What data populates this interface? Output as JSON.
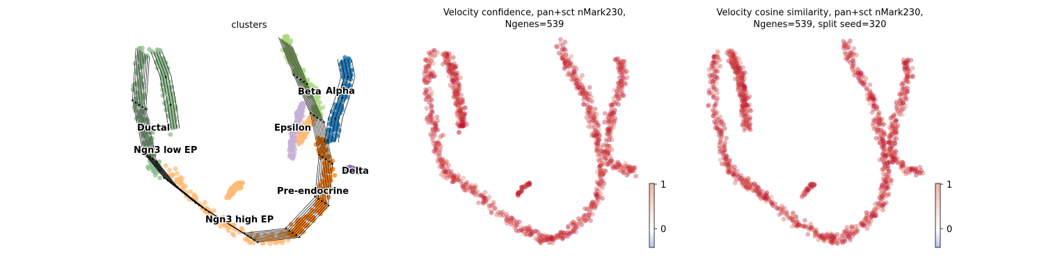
{
  "chart_data": [
    {
      "type": "scatter",
      "title": "clusters",
      "clusters": [
        {
          "name": "Ductal",
          "color": "#8fbc8f"
        },
        {
          "name": "Ngn3 low EP",
          "color": "#8fbc8f"
        },
        {
          "name": "Ngn3 high EP",
          "color": "#ffbb78"
        },
        {
          "name": "Pre-endocrine",
          "color": "#ff7f0e"
        },
        {
          "name": "Beta",
          "color": "#aad880"
        },
        {
          "name": "Alpha",
          "color": "#1f77b4"
        },
        {
          "name": "Epsilon",
          "color": "#c5b0d5"
        },
        {
          "name": "Delta",
          "color": "#8c6bb1"
        }
      ],
      "overlay": "velocity-streamlines",
      "grid": false
    },
    {
      "type": "scatter",
      "title_lines": [
        "Velocity confidence, pan+sct nMark230,",
        "Ngenes=539"
      ],
      "colorbar": {
        "ticks": [
          "1",
          "0"
        ],
        "range": [
          -0.4,
          1
        ],
        "low_color": "#3b4cc0",
        "high_color": "#b40426"
      },
      "overall_value": "high (~0.8-1.0)",
      "grid": false
    },
    {
      "type": "scatter",
      "title_lines": [
        "Velocity cosine similarity, pan+sct nMark230,",
        "Ngenes=539, split seed=320"
      ],
      "colorbar": {
        "ticks": [
          "1",
          "0"
        ],
        "range": [
          -0.4,
          1
        ],
        "low_color": "#3b4cc0",
        "high_color": "#b40426"
      },
      "overall_value": "high (~0.8-1.0)",
      "grid": false
    }
  ]
}
